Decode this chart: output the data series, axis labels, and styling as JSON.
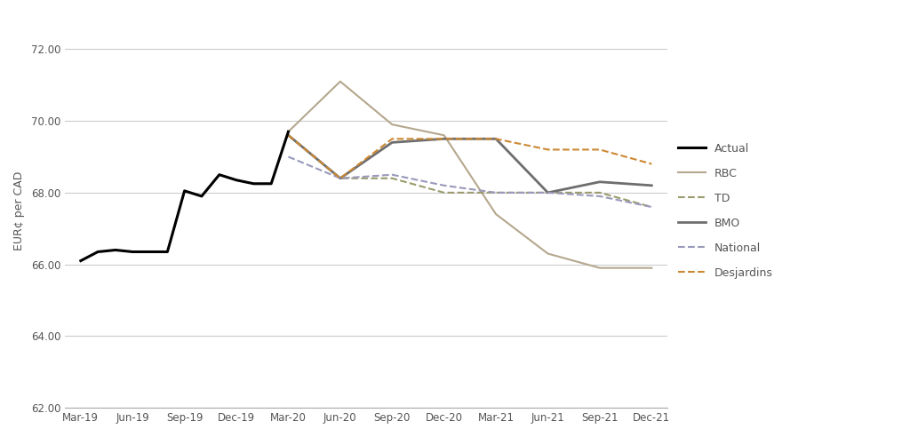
{
  "x_labels": [
    "Mar-19",
    "Jun-19",
    "Sep-19",
    "Dec-19",
    "Mar-20",
    "Jun-20",
    "Sep-20",
    "Dec-20",
    "Mar-21",
    "Jun-21",
    "Sep-21",
    "Dec-21"
  ],
  "actual_x": [
    0,
    0.33,
    0.67,
    1.0,
    1.33,
    1.67,
    2.0,
    2.33,
    2.67,
    3.0,
    3.33,
    3.67,
    4.0
  ],
  "actual_y": [
    66.1,
    66.35,
    66.4,
    66.35,
    66.35,
    66.35,
    68.05,
    67.9,
    68.5,
    68.35,
    68.25,
    68.25,
    69.7
  ],
  "series": {
    "RBC": {
      "x_indices": [
        4,
        5,
        6,
        7,
        8,
        9,
        10,
        11
      ],
      "values": [
        69.7,
        71.1,
        69.9,
        69.6,
        67.4,
        66.3,
        65.9,
        65.9
      ],
      "color": "#b5a78e",
      "linestyle": "solid",
      "linewidth": 1.5
    },
    "TD": {
      "x_indices": [
        4,
        5,
        6,
        7,
        8,
        9,
        10,
        11
      ],
      "values": [
        69.6,
        68.4,
        68.4,
        68.0,
        68.0,
        68.0,
        68.0,
        67.6
      ],
      "color": "#9b9b6e",
      "linestyle": "dashed",
      "linewidth": 1.5
    },
    "BMO": {
      "x_indices": [
        4,
        5,
        6,
        7,
        8,
        9,
        10,
        11
      ],
      "values": [
        69.6,
        68.4,
        69.4,
        69.5,
        69.5,
        68.0,
        68.3,
        68.2
      ],
      "color": "#6e6e6e",
      "linestyle": "solid",
      "linewidth": 2.0
    },
    "National": {
      "x_indices": [
        4,
        5,
        6,
        7,
        8,
        9,
        10,
        11
      ],
      "values": [
        69.0,
        68.4,
        68.5,
        68.2,
        68.0,
        68.0,
        67.9,
        67.6
      ],
      "color": "#9999bb",
      "linestyle": "dashed",
      "linewidth": 1.5
    },
    "Desjardins": {
      "x_indices": [
        4,
        5,
        6,
        7,
        8,
        9,
        10,
        11
      ],
      "values": [
        69.6,
        68.4,
        69.5,
        69.5,
        69.5,
        69.2,
        69.2,
        68.8
      ],
      "color": "#cc8833",
      "linestyle": "dashed",
      "linewidth": 1.5
    }
  },
  "actual_color": "#000000",
  "actual_linewidth": 2.2,
  "ylabel": "EUR¢ per CAD",
  "ylim": [
    62.0,
    73.0
  ],
  "yticks": [
    62.0,
    64.0,
    66.0,
    68.0,
    70.0,
    72.0
  ],
  "background_color": "#ffffff",
  "grid_color": "#cccccc",
  "legend_order": [
    "Actual",
    "RBC",
    "TD",
    "BMO",
    "National",
    "Desjardins"
  ],
  "legend_styles": {
    "Actual": {
      "color": "#000000",
      "ls": "solid",
      "lw": 2.2
    },
    "RBC": {
      "color": "#b5a78e",
      "ls": "solid",
      "lw": 1.5
    },
    "TD": {
      "color": "#9b9b6e",
      "ls": "dashed",
      "lw": 1.5
    },
    "BMO": {
      "color": "#6e6e6e",
      "ls": "solid",
      "lw": 2.0
    },
    "National": {
      "color": "#9999bb",
      "ls": "dashed",
      "lw": 1.5
    },
    "Desjardins": {
      "color": "#cc8833",
      "ls": "dashed",
      "lw": 1.5
    }
  }
}
